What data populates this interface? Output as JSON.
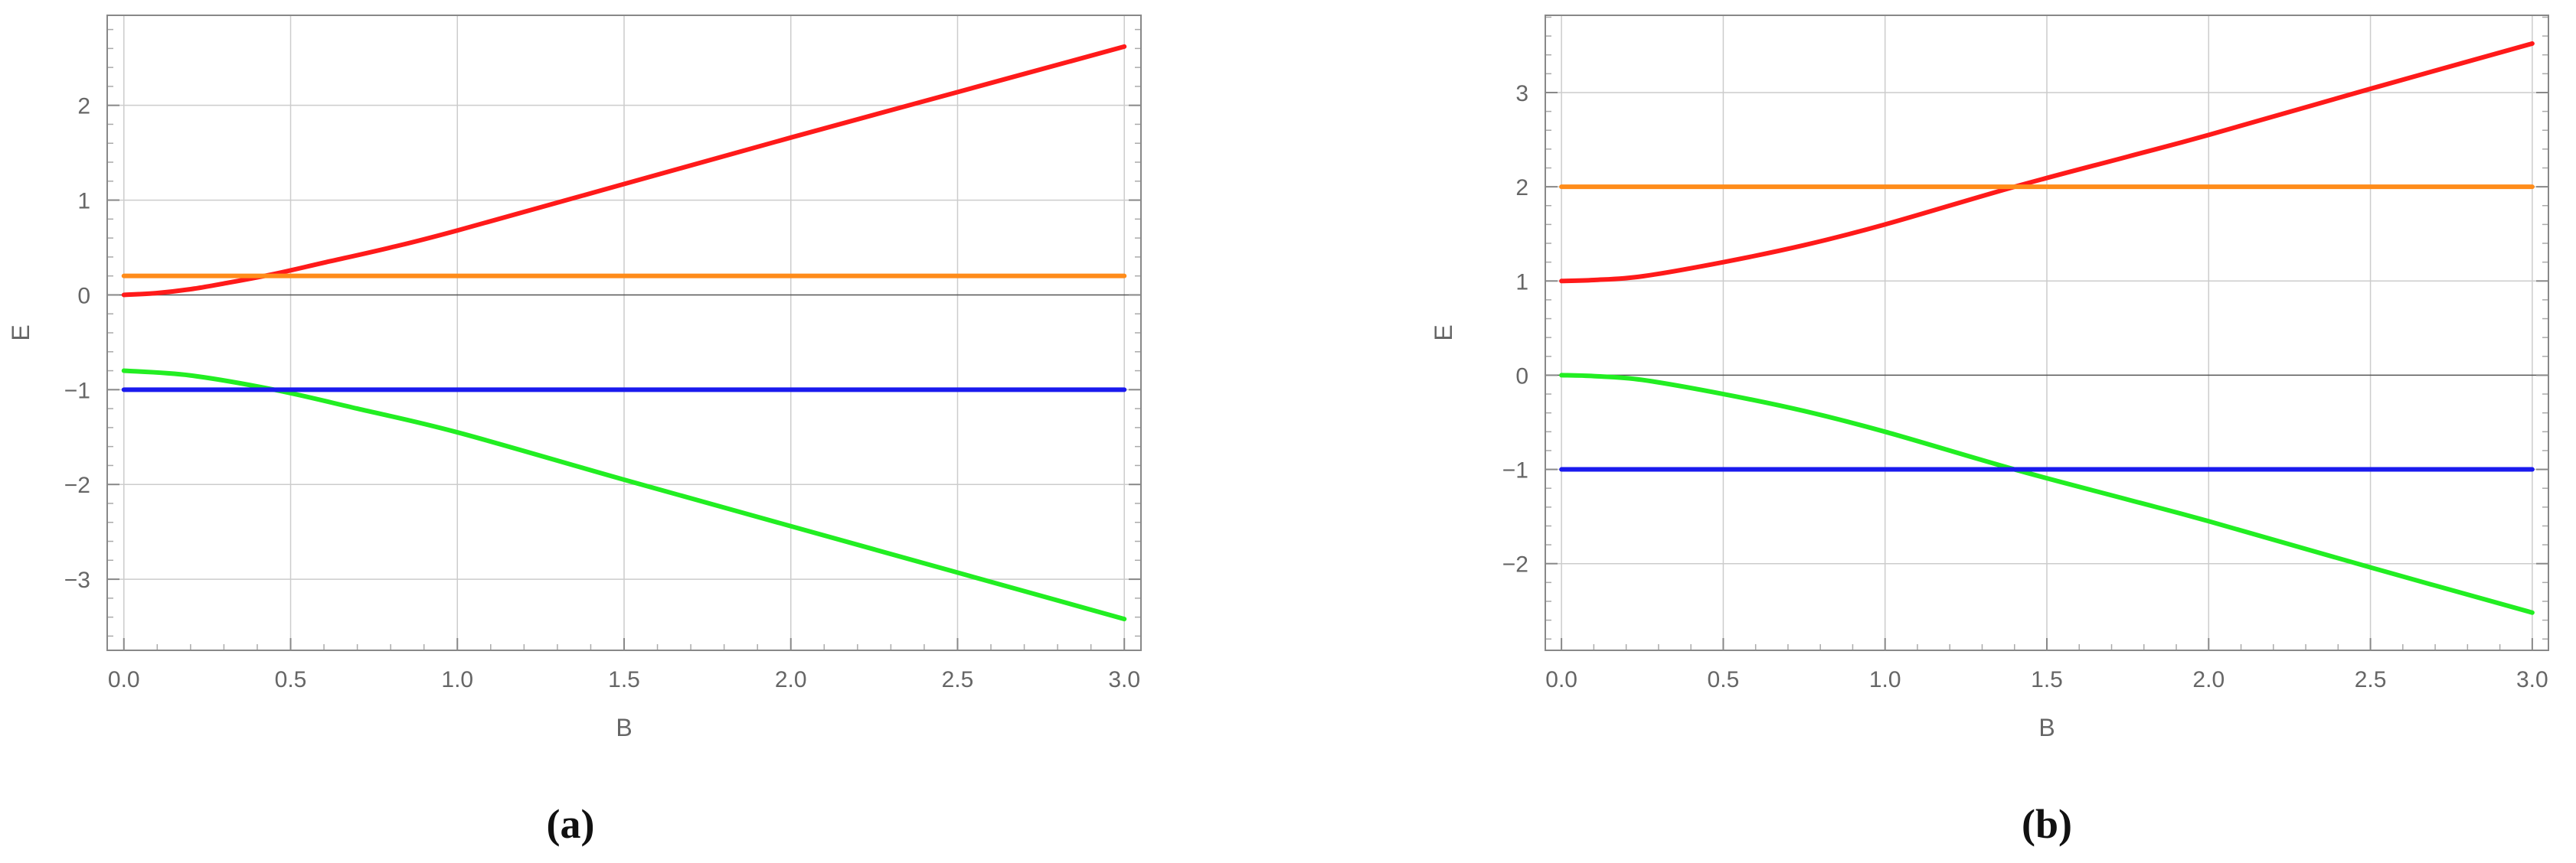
{
  "chart_data": [
    {
      "type": "line",
      "panel_label": "(a)",
      "xlabel": "B",
      "ylabel": "E",
      "xlim": [
        -0.05,
        3.05
      ],
      "ylim": [
        -3.75,
        2.95
      ],
      "xticks": [
        0.0,
        0.5,
        1.0,
        1.5,
        2.0,
        2.5,
        3.0
      ],
      "xtick_labels": [
        "0.0",
        "0.5",
        "1.0",
        "1.5",
        "2.0",
        "2.5",
        "3.0"
      ],
      "yticks": [
        -3,
        -2,
        -1,
        0,
        1,
        2
      ],
      "ytick_labels": [
        "−3",
        "−2",
        "−1",
        "0",
        "1",
        "2"
      ],
      "grid": true,
      "legend": "none",
      "series": [
        {
          "color": "#ff1a1a",
          "x": [
            0,
            0.1,
            0.2,
            0.3,
            0.45,
            0.6,
            0.8,
            1.0,
            1.5,
            2.0,
            2.5,
            3.0
          ],
          "y": [
            0.0,
            0.02,
            0.06,
            0.12,
            0.22,
            0.34,
            0.5,
            0.68,
            1.17,
            1.66,
            2.14,
            2.62
          ]
        },
        {
          "color": "#ff8c1a",
          "x": [
            0,
            3.0
          ],
          "y": [
            0.2,
            0.2
          ]
        },
        {
          "color": "#22ee22",
          "x": [
            0,
            0.2,
            0.45,
            0.7,
            1.0,
            1.5,
            2.0,
            2.5,
            3.0
          ],
          "y": [
            -0.8,
            -0.85,
            -1.0,
            -1.2,
            -1.45,
            -1.95,
            -2.44,
            -2.93,
            -3.42
          ]
        },
        {
          "color": "#1a1aee",
          "x": [
            0,
            3.0
          ],
          "y": [
            -1.0,
            -1.0
          ]
        }
      ]
    },
    {
      "type": "line",
      "panel_label": "(b)",
      "xlabel": "B",
      "ylabel": "E",
      "xlim": [
        -0.05,
        3.05
      ],
      "ylim": [
        -2.92,
        3.82
      ],
      "xticks": [
        0.0,
        0.5,
        1.0,
        1.5,
        2.0,
        2.5,
        3.0
      ],
      "xtick_labels": [
        "0.0",
        "0.5",
        "1.0",
        "1.5",
        "2.0",
        "2.5",
        "3.0"
      ],
      "yticks": [
        -2,
        -1,
        0,
        1,
        2,
        3
      ],
      "ytick_labels": [
        "−2",
        "−1",
        "0",
        "1",
        "2",
        "3"
      ],
      "grid": true,
      "legend": "none",
      "series": [
        {
          "color": "#ff1a1a",
          "x": [
            0,
            0.1,
            0.25,
            0.5,
            0.75,
            1.0,
            1.4,
            1.75,
            2.0,
            2.5,
            3.0
          ],
          "y": [
            1.0,
            1.01,
            1.05,
            1.2,
            1.38,
            1.6,
            2.0,
            2.32,
            2.55,
            3.04,
            3.52
          ]
        },
        {
          "color": "#ff8c1a",
          "x": [
            0,
            3.0
          ],
          "y": [
            2.0,
            2.0
          ]
        },
        {
          "color": "#22ee22",
          "x": [
            0,
            0.1,
            0.25,
            0.5,
            0.75,
            1.0,
            1.4,
            1.75,
            2.0,
            2.5,
            3.0
          ],
          "y": [
            0.0,
            -0.01,
            -0.05,
            -0.2,
            -0.38,
            -0.6,
            -1.0,
            -1.32,
            -1.55,
            -2.04,
            -2.52
          ]
        },
        {
          "color": "#1a1aee",
          "x": [
            0,
            3.0
          ],
          "y": [
            -1.0,
            -1.0
          ]
        }
      ]
    }
  ]
}
